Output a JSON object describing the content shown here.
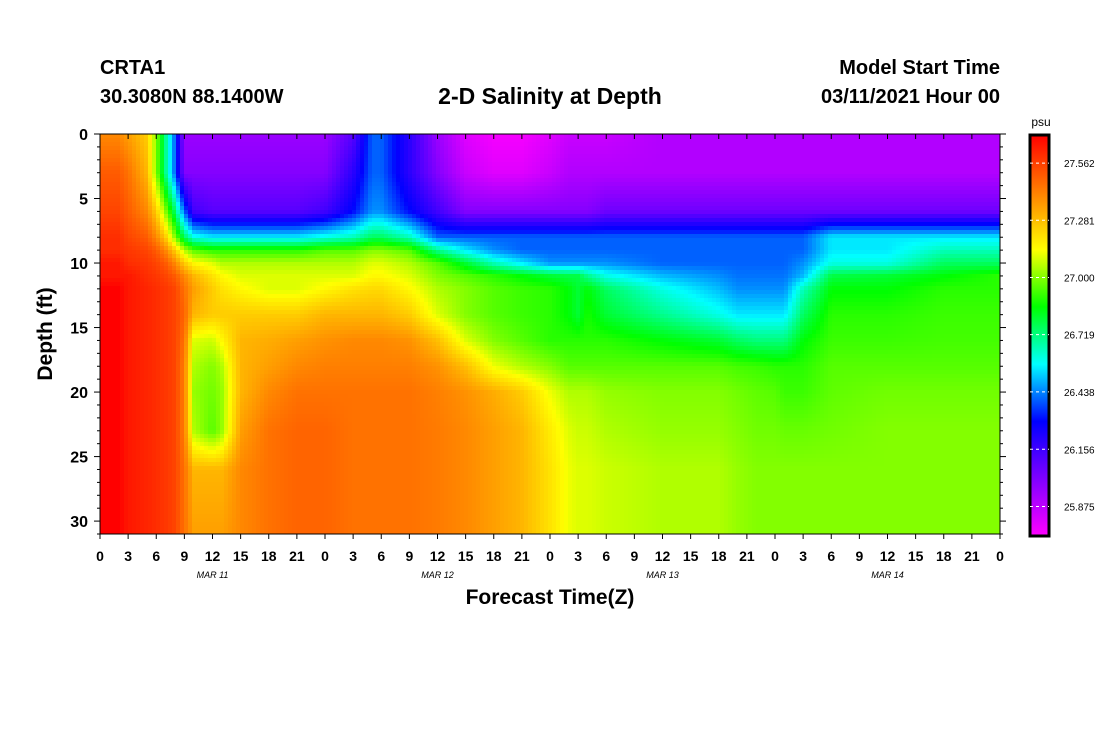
{
  "header": {
    "station": "CRTA1",
    "coords": "30.3080N 88.1400W",
    "model_start_label": "Model Start Time",
    "model_start_value": "03/11/2021 Hour 00"
  },
  "chart_data": {
    "type": "heatmap",
    "title": "2-D Salinity at Depth",
    "xlabel": "Forecast Time(Z)",
    "ylabel": "Depth (ft)",
    "x_range_hours": [
      0,
      96
    ],
    "ylim": [
      31,
      0
    ],
    "x_ticks": [
      "0",
      "3",
      "6",
      "9",
      "12",
      "15",
      "18",
      "21",
      "0",
      "3",
      "6",
      "9",
      "12",
      "15",
      "18",
      "21",
      "0",
      "3",
      "6",
      "9",
      "12",
      "15",
      "18",
      "21",
      "0",
      "3",
      "6",
      "9",
      "12",
      "15",
      "18",
      "21",
      "0"
    ],
    "date_labels": [
      "MAR 11",
      "MAR 12",
      "MAR 13",
      "MAR 14"
    ],
    "y_ticks": [
      0,
      5,
      10,
      15,
      20,
      25,
      30
    ],
    "colorbar": {
      "unit": "psu",
      "min": 25.73,
      "max": 27.7,
      "ticks": [
        "27.562",
        "27.281",
        "27.000",
        "26.719",
        "26.438",
        "26.156",
        "25.875"
      ],
      "ramp": [
        "#ff00ff",
        "#7f00ff",
        "#0000ff",
        "#00ffff",
        "#00ff00",
        "#ffff00",
        "#ff8000",
        "#ff0000"
      ]
    },
    "salinity_time_hours": [
      0,
      2,
      3,
      5,
      6,
      7,
      8,
      9,
      10,
      12,
      13,
      15,
      18,
      21,
      24,
      27,
      29,
      30,
      33,
      36,
      39,
      42,
      45,
      48,
      50,
      51,
      52,
      54,
      60,
      66,
      68,
      70,
      72,
      73,
      75,
      78,
      84,
      90,
      96
    ],
    "salinity_depth_ft": [
      0,
      3,
      6,
      8,
      9,
      10,
      11,
      12,
      14,
      16,
      18,
      20,
      23,
      26,
      31
    ],
    "salinity_psu_rows_by_depth": [
      [
        27.4,
        27.4,
        27.35,
        27.25,
        27.0,
        26.7,
        26.4,
        25.95,
        25.95,
        25.95,
        25.95,
        25.95,
        25.95,
        25.95,
        25.95,
        26.1,
        26.4,
        26.4,
        26.2,
        25.95,
        25.8,
        25.75,
        25.75,
        25.8,
        25.85,
        25.85,
        25.85,
        25.85,
        25.9,
        25.9,
        25.9,
        25.9,
        25.9,
        25.9,
        25.9,
        25.9,
        25.9,
        25.9,
        25.9
      ],
      [
        27.5,
        27.5,
        27.45,
        27.3,
        27.0,
        26.7,
        26.4,
        26.0,
        26.0,
        26.0,
        26.0,
        26.0,
        26.0,
        26.0,
        26.0,
        26.2,
        26.4,
        26.4,
        26.2,
        26.0,
        25.85,
        25.8,
        25.8,
        25.85,
        25.9,
        25.9,
        25.9,
        25.9,
        25.9,
        25.9,
        25.9,
        25.9,
        25.9,
        25.9,
        25.9,
        25.9,
        25.9,
        25.9,
        25.9
      ],
      [
        27.55,
        27.55,
        27.5,
        27.4,
        27.25,
        27.0,
        26.75,
        26.4,
        26.15,
        26.1,
        26.1,
        26.1,
        26.1,
        26.1,
        26.15,
        26.3,
        26.45,
        26.45,
        26.3,
        26.15,
        26.0,
        26.0,
        26.0,
        26.0,
        26.0,
        26.0,
        26.0,
        26.05,
        26.05,
        26.05,
        26.05,
        26.05,
        26.05,
        26.05,
        26.05,
        26.05,
        26.05,
        26.05,
        26.05
      ],
      [
        27.6,
        27.6,
        27.55,
        27.5,
        27.4,
        27.25,
        27.0,
        26.75,
        26.6,
        26.55,
        26.55,
        26.55,
        26.55,
        26.55,
        26.6,
        26.65,
        26.75,
        26.75,
        26.65,
        26.4,
        26.4,
        26.4,
        26.4,
        26.4,
        26.4,
        26.4,
        26.4,
        26.4,
        26.4,
        26.4,
        26.4,
        26.4,
        26.4,
        26.4,
        26.4,
        26.55,
        26.55,
        26.55,
        26.55
      ],
      [
        27.6,
        27.6,
        27.58,
        27.55,
        27.5,
        27.4,
        27.25,
        27.05,
        26.95,
        26.9,
        26.9,
        26.9,
        26.9,
        26.9,
        26.95,
        26.95,
        27.0,
        27.0,
        26.95,
        26.7,
        26.55,
        26.45,
        26.4,
        26.4,
        26.4,
        26.4,
        26.4,
        26.4,
        26.4,
        26.4,
        26.4,
        26.4,
        26.4,
        26.4,
        26.4,
        26.55,
        26.55,
        26.65,
        26.65
      ],
      [
        27.65,
        27.65,
        27.6,
        27.58,
        27.55,
        27.5,
        27.4,
        27.25,
        27.15,
        27.1,
        27.05,
        27.05,
        27.05,
        27.05,
        27.05,
        27.05,
        27.1,
        27.1,
        27.05,
        26.95,
        26.8,
        26.65,
        26.55,
        26.45,
        26.45,
        26.45,
        26.45,
        26.45,
        26.4,
        26.4,
        26.4,
        26.4,
        26.4,
        26.4,
        26.45,
        26.6,
        26.6,
        26.75,
        26.75
      ],
      [
        27.65,
        27.65,
        27.65,
        27.6,
        27.58,
        27.55,
        27.5,
        27.4,
        27.3,
        27.2,
        27.15,
        27.1,
        27.1,
        27.1,
        27.1,
        27.1,
        27.15,
        27.15,
        27.1,
        27.0,
        26.95,
        26.9,
        26.85,
        26.8,
        26.78,
        26.78,
        26.7,
        26.6,
        26.5,
        26.45,
        26.42,
        26.42,
        26.42,
        26.42,
        26.5,
        26.78,
        26.8,
        26.85,
        26.9
      ],
      [
        27.7,
        27.7,
        27.65,
        27.62,
        27.6,
        27.58,
        27.55,
        27.45,
        27.35,
        27.25,
        27.2,
        27.15,
        27.1,
        27.1,
        27.15,
        27.2,
        27.22,
        27.22,
        27.15,
        27.05,
        27.0,
        26.95,
        26.92,
        26.9,
        26.85,
        26.8,
        26.85,
        26.75,
        26.6,
        26.5,
        26.45,
        26.45,
        26.45,
        26.45,
        26.65,
        26.85,
        26.85,
        26.9,
        26.9
      ],
      [
        27.7,
        27.7,
        27.65,
        27.62,
        27.6,
        27.58,
        27.55,
        27.48,
        27.3,
        27.25,
        27.25,
        27.25,
        27.25,
        27.25,
        27.3,
        27.3,
        27.3,
        27.3,
        27.25,
        27.1,
        27.0,
        26.95,
        26.92,
        26.9,
        26.85,
        26.8,
        26.88,
        26.8,
        26.7,
        26.6,
        26.55,
        26.55,
        26.55,
        26.55,
        26.75,
        26.9,
        26.9,
        26.92,
        26.92
      ],
      [
        27.7,
        27.7,
        27.65,
        27.62,
        27.6,
        27.58,
        27.55,
        27.45,
        27.1,
        27.08,
        27.15,
        27.3,
        27.32,
        27.35,
        27.38,
        27.4,
        27.4,
        27.4,
        27.38,
        27.28,
        27.1,
        27.0,
        26.95,
        26.9,
        26.9,
        26.9,
        26.9,
        26.9,
        26.85,
        26.8,
        26.75,
        26.72,
        26.72,
        26.72,
        26.85,
        26.92,
        26.92,
        26.93,
        26.93
      ],
      [
        27.7,
        27.7,
        27.65,
        27.62,
        27.6,
        27.58,
        27.55,
        27.42,
        27.05,
        27.0,
        27.05,
        27.3,
        27.35,
        27.4,
        27.42,
        27.42,
        27.42,
        27.42,
        27.42,
        27.38,
        27.28,
        27.12,
        27.05,
        27.0,
        26.95,
        26.95,
        26.95,
        26.95,
        26.95,
        26.95,
        26.93,
        26.92,
        26.9,
        26.9,
        26.9,
        26.95,
        26.95,
        26.95,
        26.95
      ],
      [
        27.7,
        27.7,
        27.65,
        27.62,
        27.6,
        27.58,
        27.55,
        27.42,
        27.02,
        26.98,
        27.02,
        27.3,
        27.4,
        27.45,
        27.45,
        27.45,
        27.45,
        27.45,
        27.45,
        27.42,
        27.38,
        27.32,
        27.25,
        27.12,
        27.05,
        27.05,
        27.05,
        27.02,
        27.0,
        27.0,
        26.98,
        26.96,
        26.95,
        26.92,
        26.92,
        26.96,
        26.98,
        26.98,
        26.98
      ],
      [
        27.7,
        27.7,
        27.65,
        27.62,
        27.6,
        27.58,
        27.55,
        27.42,
        27.05,
        26.95,
        27.02,
        27.35,
        27.45,
        27.48,
        27.48,
        27.45,
        27.45,
        27.45,
        27.45,
        27.43,
        27.4,
        27.35,
        27.3,
        27.18,
        27.1,
        27.08,
        27.08,
        27.05,
        27.02,
        27.02,
        27.0,
        26.98,
        26.98,
        26.97,
        26.97,
        26.98,
        27.0,
        27.0,
        27.0
      ],
      [
        27.7,
        27.7,
        27.65,
        27.62,
        27.6,
        27.58,
        27.55,
        27.45,
        27.3,
        27.3,
        27.3,
        27.4,
        27.45,
        27.48,
        27.48,
        27.45,
        27.45,
        27.45,
        27.45,
        27.43,
        27.4,
        27.35,
        27.3,
        27.2,
        27.12,
        27.1,
        27.1,
        27.08,
        27.05,
        27.05,
        27.02,
        27.0,
        27.0,
        27.0,
        27.0,
        27.0,
        27.0,
        27.0,
        27.0
      ],
      [
        27.7,
        27.7,
        27.65,
        27.62,
        27.6,
        27.58,
        27.55,
        27.45,
        27.35,
        27.35,
        27.35,
        27.4,
        27.45,
        27.48,
        27.48,
        27.45,
        27.45,
        27.45,
        27.45,
        27.43,
        27.4,
        27.35,
        27.3,
        27.2,
        27.12,
        27.1,
        27.1,
        27.08,
        27.05,
        27.05,
        27.02,
        27.0,
        27.0,
        27.0,
        27.0,
        27.0,
        27.0,
        27.0,
        27.0
      ]
    ]
  }
}
